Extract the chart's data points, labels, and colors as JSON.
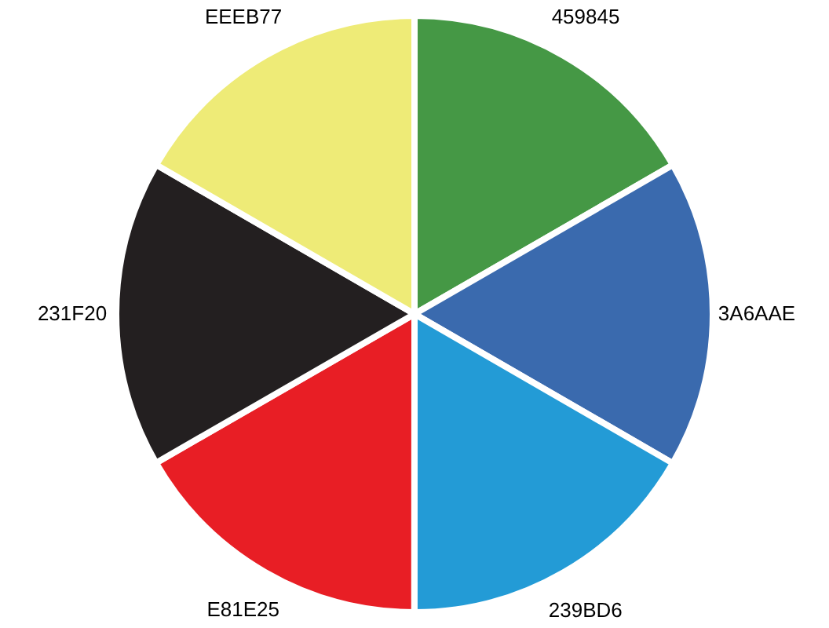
{
  "chart_data": {
    "type": "pie",
    "categories": [
      "459845",
      "3A6AAE",
      "239BD6",
      "E81E25",
      "231F20",
      "EEEB77"
    ],
    "values": [
      16.67,
      16.67,
      16.67,
      16.67,
      16.66,
      16.66
    ],
    "colors": [
      "#459845",
      "#3a6aae",
      "#239bd6",
      "#e81e25",
      "#231f20",
      "#eeeb77"
    ]
  }
}
